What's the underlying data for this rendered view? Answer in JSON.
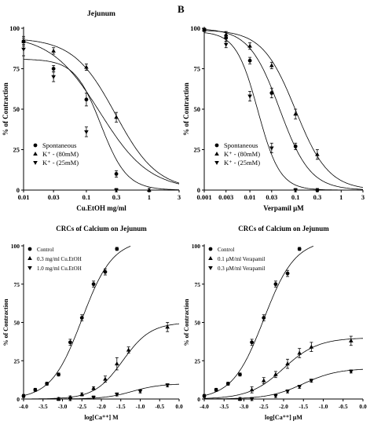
{
  "panel_letter": "B",
  "chart_data": [
    {
      "type": "scatter",
      "title": "Jejunum",
      "xlabel": "Cu.EtOH mg/ml",
      "ylabel": "% of Contraction",
      "x_scale": "log",
      "xlim": [
        0.01,
        3
      ],
      "ylim": [
        0,
        100
      ],
      "x_ticks": [
        0.01,
        0.03,
        0.1,
        0.3,
        1,
        3
      ],
      "x_tick_labels": [
        "0.01",
        "0.03",
        "0.1",
        "0.3",
        "1",
        "3"
      ],
      "y_ticks": [
        0,
        25,
        50,
        75,
        100
      ],
      "y_tick_labels": [
        "0",
        "25",
        "50",
        "75",
        "100"
      ],
      "legend_position": "bottom-left",
      "series": [
        {
          "name": "Spontaneous",
          "marker": "circle",
          "x": [
            0.01,
            0.03,
            0.1,
            0.3
          ],
          "y": [
            92,
            75,
            56,
            10
          ],
          "err": [
            3,
            2,
            4,
            2
          ],
          "fit": {
            "top": 96,
            "ec50": 0.165,
            "hill": -1.1
          }
        },
        {
          "name": "K⁺ - (80mM)",
          "marker": "triangle-up",
          "x": [
            0.01,
            0.03,
            0.1,
            0.3,
            1
          ],
          "y": [
            92,
            86,
            76,
            45,
            0
          ],
          "err": [
            2,
            2,
            2,
            3,
            1
          ],
          "fit": {
            "top": 94,
            "ec50": 0.29,
            "hill": -1.3
          }
        },
        {
          "name": "K⁺ - (25mM)",
          "marker": "triangle-down",
          "x": [
            0.01,
            0.03,
            0.1,
            0.3
          ],
          "y": [
            87,
            70,
            36,
            0
          ],
          "err": [
            4,
            3,
            3,
            1
          ],
          "fit": {
            "top": 81,
            "ec50": 0.17,
            "hill": -2.1
          }
        }
      ]
    },
    {
      "type": "scatter",
      "title": "",
      "xlabel": "Verpamil µM",
      "ylabel": "% of Contraction",
      "x_scale": "log",
      "xlim": [
        0.001,
        3
      ],
      "ylim": [
        0,
        100
      ],
      "x_ticks": [
        0.001,
        0.003,
        0.01,
        0.03,
        0.1,
        0.3,
        1,
        3
      ],
      "x_tick_labels": [
        "0.001",
        "0.003",
        "0.01",
        "0.03",
        "0.1",
        "0.3",
        "1",
        "3"
      ],
      "y_ticks": [
        0,
        25,
        50,
        75,
        100
      ],
      "y_tick_labels": [
        "0",
        "25",
        "50",
        "75",
        "100"
      ],
      "legend_position": "bottom-left",
      "series": [
        {
          "name": "Spontaneous",
          "marker": "circle",
          "x": [
            0.001,
            0.003,
            0.01,
            0.03,
            0.1,
            0.3
          ],
          "y": [
            99,
            94,
            80,
            60,
            27,
            0
          ],
          "err": [
            1,
            2,
            2,
            3,
            2,
            1
          ],
          "fit": {
            "top": 100,
            "ec50": 0.045,
            "hill": -1.3
          }
        },
        {
          "name": "K⁺ - (80mM)",
          "marker": "triangle-up",
          "x": [
            0.001,
            0.003,
            0.01,
            0.03,
            0.1,
            0.3
          ],
          "y": [
            99,
            96,
            89,
            77,
            47,
            22
          ],
          "err": [
            1,
            2,
            2,
            2,
            3,
            3
          ],
          "fit": {
            "top": 99,
            "ec50": 0.1,
            "hill": -1.2
          }
        },
        {
          "name": "K⁺ - (25mM)",
          "marker": "triangle-down",
          "x": [
            0.001,
            0.003,
            0.01,
            0.03,
            0.1
          ],
          "y": [
            99,
            90,
            58,
            26,
            0
          ],
          "err": [
            1,
            2,
            3,
            3,
            1
          ],
          "fit": {
            "top": 98,
            "ec50": 0.015,
            "hill": -1.8
          }
        }
      ]
    },
    {
      "type": "scatter",
      "title": "CRCs of Calcium on Jejunum",
      "xlabel": "log[Ca⁺⁺] M",
      "ylabel": "% of Contraction",
      "xlim": [
        -4.0,
        0.0
      ],
      "ylim": [
        0,
        100
      ],
      "x_ticks": [
        -4.0,
        -3.5,
        -3.0,
        -2.5,
        -2.0,
        -1.5,
        -1.0,
        -0.5,
        0.0
      ],
      "x_tick_labels": [
        "-4.0",
        "-3.5",
        "-3.0",
        "-2.5",
        "-2.0",
        "-1.5",
        "-1.0",
        "-0.5",
        "0.0"
      ],
      "y_ticks": [
        0,
        25,
        50,
        75,
        100
      ],
      "y_tick_labels": [
        "0",
        "25",
        "50",
        "75",
        "100"
      ],
      "legend_position": "top-left",
      "series": [
        {
          "name": "Control",
          "marker": "circle",
          "x": [
            -4.0,
            -3.7,
            -3.4,
            -3.1,
            -2.8,
            -2.5,
            -2.2,
            -1.9,
            -1.6
          ],
          "y": [
            2,
            6,
            10,
            16,
            37,
            53,
            75,
            83,
            98
          ],
          "err": [
            1,
            1,
            1,
            1,
            2,
            2,
            2,
            2,
            1
          ],
          "fit": {
            "top": 104,
            "ec50": -2.5,
            "hill": 1.1
          }
        },
        {
          "name": "0.3 mg/ml Cu.EtOH",
          "marker": "triangle-up",
          "x": [
            -3.1,
            -2.8,
            -2.5,
            -2.2,
            -1.9,
            -1.6,
            -1.3,
            -0.3
          ],
          "y": [
            0,
            1,
            3,
            7,
            13,
            23,
            32,
            47
          ],
          "err": [
            1,
            1,
            1,
            1,
            2,
            4,
            2,
            3
          ],
          "fit": {
            "top": 50,
            "ec50": -1.45,
            "hill": 1.2
          }
        },
        {
          "name": "1.0 mg/ml Cu.EtOH",
          "marker": "triangle-down",
          "x": [
            -2.8,
            -2.2,
            -1.6,
            -1.0,
            -0.3
          ],
          "y": [
            0,
            1,
            3,
            5,
            9
          ],
          "err": [
            1,
            1,
            1,
            1,
            1
          ],
          "fit": {
            "top": 10,
            "ec50": -1.2,
            "hill": 1.2
          }
        }
      ]
    },
    {
      "type": "scatter",
      "title": "CRCs of Calcium on Jejunum",
      "xlabel": "log[Ca⁺⁺] µM",
      "ylabel": "% of Contraction",
      "xlim": [
        -4.0,
        0.0
      ],
      "ylim": [
        0,
        100
      ],
      "x_ticks": [
        -4.0,
        -3.5,
        -3.0,
        -2.5,
        -2.0,
        -1.5,
        -1.0,
        -0.5,
        0.0
      ],
      "x_tick_labels": [
        "-4.0",
        "-3.5",
        "-3.0",
        "-2.5",
        "-2.0",
        "-1.5",
        "-1.0",
        "-0.5",
        "0.0"
      ],
      "y_ticks": [
        0,
        25,
        50,
        75,
        100
      ],
      "y_tick_labels": [
        "0",
        "25",
        "50",
        "75",
        "100"
      ],
      "legend_position": "top-left",
      "series": [
        {
          "name": "Control",
          "marker": "circle",
          "x": [
            -4.0,
            -3.7,
            -3.4,
            -3.1,
            -2.8,
            -2.5,
            -2.2,
            -1.9,
            -1.6
          ],
          "y": [
            2,
            6,
            10,
            16,
            37,
            53,
            75,
            82,
            98
          ],
          "err": [
            1,
            1,
            1,
            1,
            2,
            2,
            2,
            2,
            1
          ],
          "fit": {
            "top": 104,
            "ec50": -2.5,
            "hill": 1.1
          }
        },
        {
          "name": "0.1 µM/ml Verapamil",
          "marker": "triangle-up",
          "x": [
            -3.1,
            -2.8,
            -2.5,
            -2.2,
            -1.9,
            -1.6,
            -1.3,
            -0.3
          ],
          "y": [
            0,
            6,
            12,
            16,
            23,
            30,
            34,
            38
          ],
          "err": [
            1,
            2,
            2,
            2,
            3,
            3,
            3,
            3
          ],
          "fit": {
            "top": 40,
            "ec50": -2.0,
            "hill": 1.0
          }
        },
        {
          "name": "0.3 µM/ml Verapamil",
          "marker": "triangle-down",
          "x": [
            -2.8,
            -2.2,
            -1.9,
            -1.6,
            -1.3,
            -0.3
          ],
          "y": [
            0,
            2,
            5,
            8,
            12,
            18
          ],
          "err": [
            1,
            1,
            1,
            1,
            1,
            1
          ],
          "fit": {
            "top": 20,
            "ec50": -1.5,
            "hill": 1.0
          }
        }
      ]
    }
  ]
}
